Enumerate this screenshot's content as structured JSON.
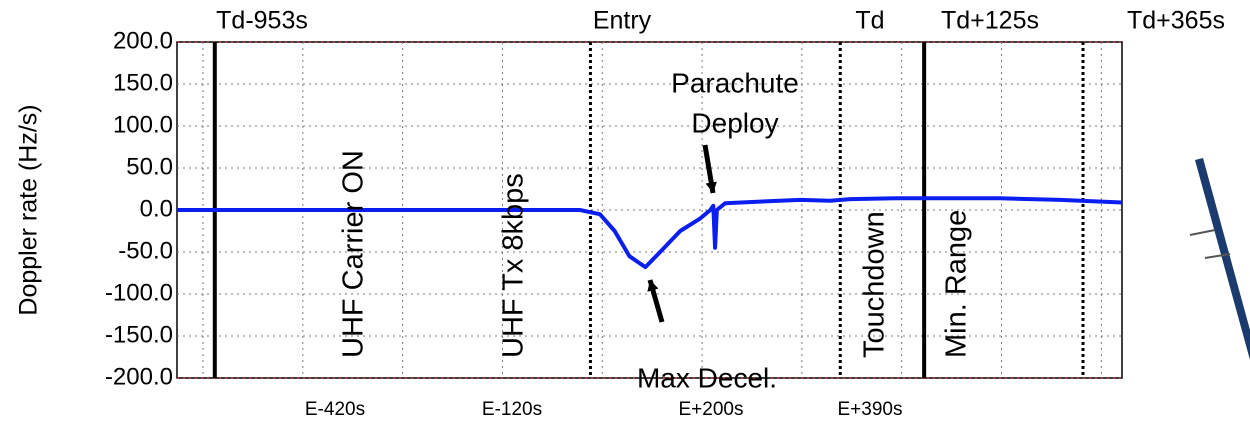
{
  "chart_data": {
    "type": "line",
    "ylabel": "Doppler rate (Hz/s)",
    "xlim": [
      -700,
      900
    ],
    "xticks": [
      -656,
      -487,
      -318,
      -149,
      20,
      189,
      358,
      527,
      696,
      865
    ],
    "ylim": [
      -200,
      200
    ],
    "yticks": [
      {
        "value": 200,
        "label": "200.0"
      },
      {
        "value": 150,
        "label": "150.0"
      },
      {
        "value": 100,
        "label": "100.0"
      },
      {
        "value": 50,
        "label": "50.0"
      },
      {
        "value": 0,
        "label": "0.0"
      },
      {
        "value": -50,
        "label": "-50.0"
      },
      {
        "value": -100,
        "label": "-100.0"
      },
      {
        "value": -150,
        "label": "-150.0"
      },
      {
        "value": -200,
        "label": "-200.0"
      }
    ],
    "grid": true,
    "color": "#0a1ef0",
    "x": [
      -700,
      -18,
      16,
      41,
      66,
      93,
      118,
      152,
      186,
      203,
      208,
      211,
      214,
      228,
      287,
      355,
      406,
      440,
      524,
      693,
      795,
      900
    ],
    "values": [
      0,
      0,
      -5,
      -25,
      -55,
      -68,
      -50,
      -25,
      -10,
      0,
      5,
      -45,
      0,
      8,
      10,
      12,
      11,
      13,
      14,
      14,
      12,
      9
    ],
    "events": [
      {
        "x": -636,
        "style": "solid"
      },
      {
        "x": 0,
        "style": "dotted"
      },
      {
        "x": 423,
        "style": "dotted"
      },
      {
        "x": 565,
        "style": "solid"
      },
      {
        "x": 834,
        "style": "dotted"
      }
    ],
    "top_labels": [
      "Td-953s",
      "Entry",
      "Td",
      "Td+125s",
      "Td+365s"
    ],
    "bottom_labels": [
      "E-420s",
      "E-120s",
      "E+200s",
      "E+390s"
    ],
    "event_labels": [
      "UHF Carrier ON",
      "UHF Tx 8kbps",
      "Touchdown",
      "Min. Range"
    ],
    "annotations": [
      "Parachute",
      "Deploy",
      "Max Decel."
    ]
  }
}
